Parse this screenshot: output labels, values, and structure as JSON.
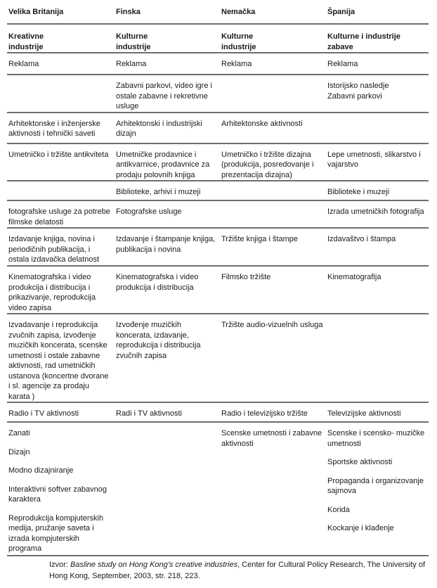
{
  "countries": [
    "Velika Britanija",
    "Finska",
    "Nemačka",
    "Španija"
  ],
  "categories": [
    "Kreativne industrije",
    "Kulturne industrije",
    "Kulturne industrije",
    "Kulturne i industrije zabave"
  ],
  "rows": [
    [
      "Reklama",
      "Reklama",
      "Reklama",
      "Reklama"
    ],
    [
      "",
      "Zabavni parkovi, video igre i ostale zabavne i rekretivne usluge",
      "",
      "Istorijsko nasledje Zabavni parkovi"
    ],
    [
      "Arhitektonske i inženjerske aktivnosti i tehnički saveti",
      "Arhitektonski i industrijski dizajn",
      "Arhitektonske aktivnosti",
      ""
    ],
    [
      "Umetničko i tržište antikviteta",
      "Umetničke prodavnice i antikvarnice, prodavnice za prodaju polovnih knjiga",
      "Umetničko i tržište dizajna (produkcija, posredovanje i prezentacija dizajna)",
      "Lepe umetnosti, slikarstvo i vajarstvo"
    ],
    [
      "",
      "Biblioteke, arhivi i muzeji",
      "",
      "Biblioteke i muzeji"
    ],
    [
      "fotografske usluge za potrebe filmske delatosti",
      "Fotografske usluge",
      "",
      "Izrada umetničkih fotografija"
    ],
    [
      "Izdavanje knjiga, novina i periodičnih publikacija, i ostala izdavačka delatnost",
      "Izdavanje i  štampanje knjiga, publikacija i novina",
      "Tržište knjiga i štampe",
      "Izdavaštvo i štampa"
    ],
    [
      "Kinematografska i video produkcija i distribucija i prikazivanje, reprodukcija video zapisa",
      "Kinematografska i video produkcija i distribucija",
      "Filmsko tržište",
      "Kinematografija"
    ],
    [
      "Izvadavanje i reprodukcija zvučnih zapisa, izvođenje muzičkih koncerata, scenske umetnosti i ostale zabavne aktivnosti, rad umetničkih ustanova (koncertne dvorane i sl. agencije za prodaju karata )",
      "Izvođenje muzičkih koncerata, izdavanje, reprodukcija i distribucija zvučnih zapisa",
      "Tržište audio-vizuelnih usluga",
      ""
    ],
    [
      "Radio i TV aktivnosti",
      "Radi i TV aktivnosti",
      "Radio i televizijsko tržište",
      "Televizijske aktivnosti"
    ]
  ],
  "last_row": {
    "col1": [
      "Zanati",
      "Dizajn",
      "Modno dizajniranje",
      "Interaktivni softver zabavnog karaktera",
      "Reprodukcija kompjuterskih medija, pružanje saveta i izrada kompjuterskih programa"
    ],
    "col2": [],
    "col3": [
      "Scenske umetnosti i zabavne aktivnosti"
    ],
    "col4": [
      "Scenske i scensko- muzičke umetnosti",
      "Sportske aktivnosti",
      "Propaganda i organizovanje sajmova",
      "Korida",
      "Kockanje i klađenje"
    ]
  },
  "source": {
    "prefix": "Izvor: ",
    "title": "Basline study on Hong Kong's creative industries",
    "rest": ", Center for Cultural Policy Research, The University of Hong Kong, September, 2003, str. 218, 223."
  }
}
